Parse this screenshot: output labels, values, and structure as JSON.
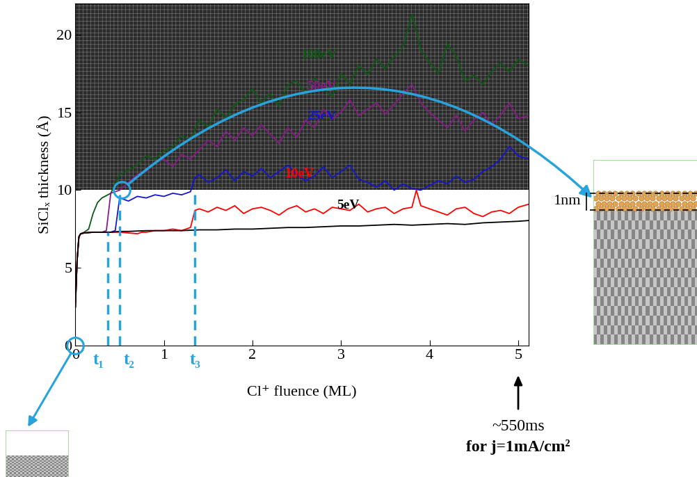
{
  "chart_data": {
    "type": "line",
    "x_label": "Cl⁺ fluence (ML)",
    "y_label": "SiClₓ thickness (Å)",
    "xlim": [
      0,
      5.12
    ],
    "ylim": [
      0,
      22
    ],
    "xticks": [
      0,
      1,
      2,
      3,
      4,
      5
    ],
    "yticks": [
      0,
      5,
      10,
      15,
      20
    ],
    "shaded_ymin": 10,
    "series": [
      {
        "name": "100eV",
        "color": "#0b5a12",
        "x": [
          0,
          0.02,
          0.04,
          0.06,
          0.1,
          0.15,
          0.2,
          0.25,
          0.3,
          0.4,
          0.5,
          0.6,
          0.7,
          0.8,
          0.9,
          1.0,
          1.1,
          1.2,
          1.3,
          1.4,
          1.5,
          1.6,
          1.7,
          1.8,
          1.9,
          2.0,
          2.1,
          2.2,
          2.3,
          2.4,
          2.5,
          2.6,
          2.7,
          2.8,
          2.9,
          3.0,
          3.1,
          3.2,
          3.3,
          3.4,
          3.5,
          3.6,
          3.7,
          3.8,
          3.85,
          3.9,
          4.0,
          4.1,
          4.2,
          4.3,
          4.4,
          4.5,
          4.6,
          4.7,
          4.8,
          4.9,
          5.0,
          5.12
        ],
        "values": [
          2.5,
          5.5,
          7.0,
          7.2,
          7.3,
          7.5,
          8.5,
          9.2,
          9.5,
          9.8,
          11.0,
          11.3,
          11.6,
          12.2,
          12.0,
          12.5,
          12.8,
          13.5,
          13.2,
          14.5,
          14.0,
          15.2,
          14.6,
          15.5,
          15.8,
          16.5,
          15.6,
          16.2,
          15.4,
          16.8,
          17.0,
          16.2,
          17.2,
          16.5,
          16.0,
          17.5,
          16.8,
          18.0,
          17.4,
          18.4,
          17.8,
          18.6,
          19.2,
          21.3,
          20.2,
          19.0,
          18.2,
          17.5,
          19.4,
          18.6,
          17.0,
          17.4,
          16.8,
          17.6,
          18.2,
          17.6,
          18.4,
          18.0
        ]
      },
      {
        "name": "50eV",
        "color": "#8a1a8a",
        "x": [
          0,
          0.02,
          0.04,
          0.06,
          0.1,
          0.2,
          0.3,
          0.35,
          0.4,
          0.5,
          0.6,
          0.7,
          0.8,
          0.9,
          1.0,
          1.1,
          1.2,
          1.3,
          1.4,
          1.5,
          1.6,
          1.7,
          1.8,
          1.9,
          2.0,
          2.1,
          2.2,
          2.3,
          2.4,
          2.5,
          2.6,
          2.7,
          2.8,
          2.9,
          3.0,
          3.1,
          3.2,
          3.3,
          3.4,
          3.5,
          3.6,
          3.7,
          3.8,
          3.9,
          4.0,
          4.1,
          4.2,
          4.3,
          4.4,
          4.5,
          4.6,
          4.7,
          4.8,
          4.9,
          5.0,
          5.12
        ],
        "values": [
          2.5,
          5.5,
          7.0,
          7.2,
          7.25,
          7.3,
          7.3,
          7.4,
          9.8,
          10.0,
          10.5,
          11.0,
          11.2,
          11.8,
          12.0,
          11.5,
          12.3,
          12.0,
          12.6,
          13.2,
          12.8,
          13.8,
          13.2,
          14.0,
          13.5,
          14.2,
          13.6,
          13.0,
          14.0,
          13.4,
          14.5,
          14.0,
          15.2,
          14.6,
          15.0,
          15.8,
          14.8,
          15.2,
          15.6,
          14.9,
          15.5,
          16.2,
          16.8,
          15.6,
          15.0,
          14.5,
          14.0,
          14.8,
          13.8,
          14.5,
          15.0,
          14.2,
          14.8,
          15.6,
          14.6,
          14.8
        ]
      },
      {
        "name": "25eV",
        "color": "#1515d0",
        "x": [
          0,
          0.02,
          0.04,
          0.06,
          0.1,
          0.2,
          0.3,
          0.4,
          0.45,
          0.5,
          0.6,
          0.7,
          0.8,
          0.9,
          1.0,
          1.1,
          1.2,
          1.3,
          1.35,
          1.4,
          1.5,
          1.6,
          1.7,
          1.8,
          1.9,
          2.0,
          2.1,
          2.2,
          2.3,
          2.4,
          2.5,
          2.6,
          2.7,
          2.8,
          2.9,
          3.0,
          3.1,
          3.2,
          3.3,
          3.4,
          3.5,
          3.6,
          3.7,
          3.8,
          3.9,
          4.0,
          4.1,
          4.2,
          4.3,
          4.4,
          4.5,
          4.6,
          4.7,
          4.8,
          4.9,
          5.0,
          5.12
        ],
        "values": [
          2.5,
          5.5,
          7.0,
          7.2,
          7.25,
          7.3,
          7.3,
          7.3,
          7.4,
          9.5,
          9.3,
          9.6,
          9.5,
          9.7,
          9.6,
          9.8,
          9.7,
          9.9,
          10.8,
          11.0,
          10.5,
          10.8,
          11.3,
          10.6,
          11.2,
          10.9,
          11.4,
          10.8,
          11.2,
          11.6,
          11.0,
          10.6,
          10.9,
          11.5,
          10.8,
          11.2,
          11.6,
          10.7,
          10.5,
          10.2,
          10.6,
          10.0,
          10.4,
          10.1,
          10.0,
          10.3,
          10.6,
          10.4,
          10.9,
          10.5,
          10.7,
          11.2,
          11.5,
          12.0,
          12.8,
          12.2,
          12.0
        ]
      },
      {
        "name": "10eV",
        "color": "#ff0000",
        "x": [
          0,
          0.02,
          0.04,
          0.06,
          0.1,
          0.2,
          0.3,
          0.4,
          0.5,
          0.6,
          0.7,
          0.75,
          0.8,
          0.9,
          1.0,
          1.1,
          1.2,
          1.3,
          1.35,
          1.4,
          1.5,
          1.6,
          1.7,
          1.8,
          1.9,
          2.0,
          2.1,
          2.2,
          2.3,
          2.4,
          2.5,
          2.6,
          2.7,
          2.8,
          2.9,
          3.0,
          3.1,
          3.2,
          3.3,
          3.4,
          3.5,
          3.6,
          3.7,
          3.8,
          3.85,
          3.9,
          4.0,
          4.1,
          4.2,
          4.3,
          4.4,
          4.5,
          4.6,
          4.7,
          4.8,
          4.9,
          5.0,
          5.12
        ],
        "values": [
          2.5,
          5.5,
          7.0,
          7.2,
          7.25,
          7.3,
          7.3,
          7.3,
          7.3,
          7.25,
          7.2,
          7.3,
          7.3,
          7.4,
          7.4,
          7.5,
          7.4,
          7.6,
          8.7,
          8.8,
          8.6,
          8.9,
          8.7,
          9.0,
          8.5,
          8.8,
          8.9,
          8.7,
          8.4,
          8.8,
          9.0,
          8.6,
          8.8,
          8.5,
          8.9,
          8.8,
          8.7,
          9.1,
          8.6,
          8.8,
          8.9,
          8.5,
          8.8,
          8.9,
          10.0,
          9.0,
          8.8,
          8.6,
          8.4,
          8.8,
          8.9,
          8.5,
          8.3,
          8.6,
          8.7,
          8.5,
          8.9,
          9.1
        ]
      },
      {
        "name": "5eV",
        "color": "#000000",
        "x": [
          0,
          0.02,
          0.04,
          0.06,
          0.1,
          0.2,
          0.3,
          0.4,
          0.5,
          0.6,
          0.8,
          1.0,
          1.2,
          1.4,
          1.6,
          1.8,
          2.0,
          2.2,
          2.4,
          2.6,
          2.8,
          3.0,
          3.2,
          3.4,
          3.6,
          3.8,
          4.0,
          4.2,
          4.4,
          4.6,
          4.8,
          5.0,
          5.12
        ],
        "values": [
          2.5,
          5.5,
          7.0,
          7.2,
          7.25,
          7.3,
          7.3,
          7.3,
          7.35,
          7.35,
          7.4,
          7.4,
          7.4,
          7.45,
          7.45,
          7.5,
          7.5,
          7.55,
          7.6,
          7.6,
          7.65,
          7.7,
          7.7,
          7.75,
          7.8,
          7.75,
          7.8,
          7.85,
          7.8,
          7.9,
          7.95,
          8.0,
          8.05
        ]
      }
    ],
    "time_markers": [
      {
        "label": "t₁",
        "x": 0.37,
        "y": 7.3
      },
      {
        "label": "t₂",
        "x": 0.5,
        "y": 10
      },
      {
        "label": "t₃",
        "x": 1.35,
        "y": 10
      }
    ],
    "circles": [
      {
        "x": 0,
        "y": 0
      },
      {
        "x": 0.52,
        "y": 10
      }
    ],
    "layer_label": "1nm",
    "note": [
      "~550ms",
      "for j=1mA/cm²"
    ]
  }
}
